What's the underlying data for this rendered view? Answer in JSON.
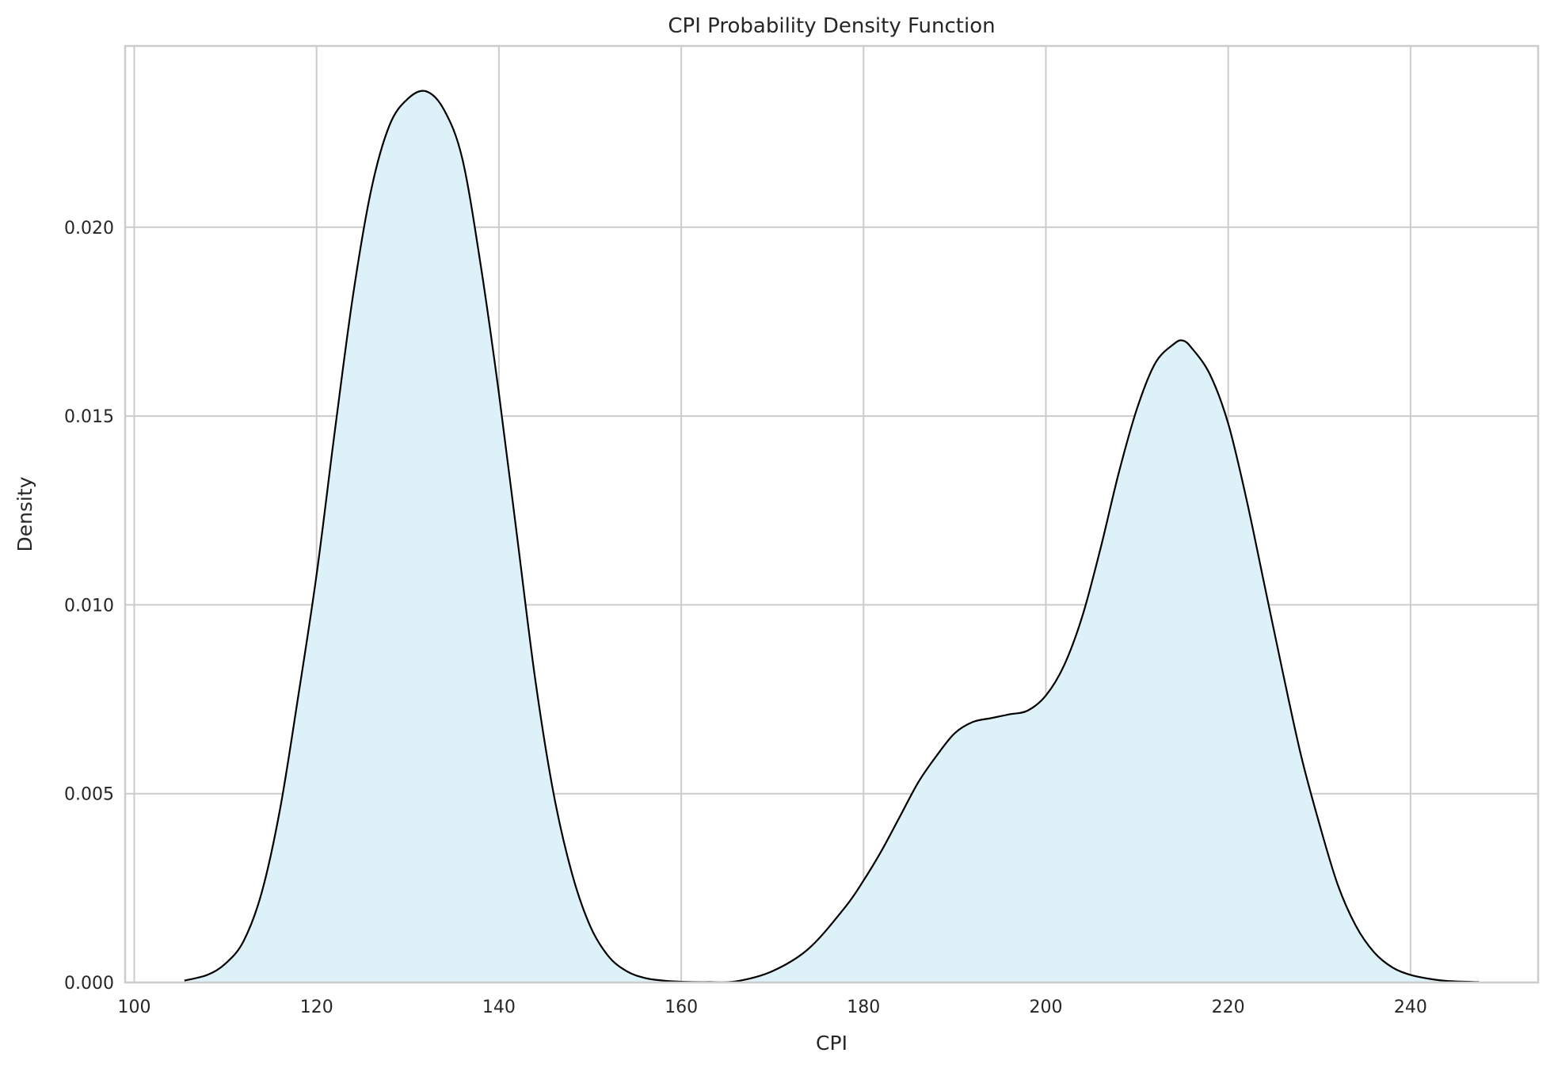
{
  "chart_data": {
    "type": "area",
    "title": "CPI Probability Density Function",
    "xlabel": "CPI",
    "ylabel": "Density",
    "xlim": [
      99,
      254
    ],
    "ylim": [
      0,
      0.0248
    ],
    "x_ticks": [
      100,
      120,
      140,
      160,
      180,
      200,
      220,
      240
    ],
    "x_tick_labels": [
      "100",
      "120",
      "140",
      "160",
      "180",
      "200",
      "220",
      "240"
    ],
    "y_ticks": [
      0,
      0.005,
      0.01,
      0.015,
      0.02
    ],
    "y_tick_labels": [
      "0.000",
      "0.005",
      "0.010",
      "0.015",
      "0.020"
    ],
    "grid": true,
    "legend": "none",
    "colors": {
      "fill": "#ddf1f9",
      "line": "#000000",
      "grid": "#cccccc",
      "frame": "#cccccc"
    },
    "series": [
      {
        "x": [
          105.5,
          108,
          110,
          112,
          114,
          116,
          118,
          120,
          122,
          124,
          126,
          128,
          130,
          132,
          134,
          136,
          138,
          140,
          142,
          144,
          146,
          148,
          150,
          152,
          154,
          156,
          158,
          160,
          163,
          166,
          170,
          174,
          178,
          180,
          182,
          184,
          186,
          188,
          190,
          192,
          194,
          196,
          198,
          200,
          202,
          204,
          206,
          208,
          210,
          212,
          214,
          215,
          216,
          218,
          220,
          222,
          224,
          226,
          228,
          230,
          232,
          234,
          236,
          238,
          240,
          242,
          244,
          247.5
        ],
        "y": [
          5e-05,
          0.0002,
          0.0005,
          0.0011,
          0.0024,
          0.0046,
          0.0076,
          0.0108,
          0.0146,
          0.0182,
          0.021,
          0.0227,
          0.0234,
          0.0236,
          0.0231,
          0.0218,
          0.019,
          0.0156,
          0.0118,
          0.008,
          0.005,
          0.0029,
          0.0015,
          0.0007,
          0.0003,
          0.00012,
          5e-05,
          2e-05,
          1e-05,
          3e-05,
          0.0003,
          0.0009,
          0.002,
          0.0027,
          0.0035,
          0.0044,
          0.0053,
          0.006,
          0.0066,
          0.0069,
          0.007,
          0.0071,
          0.0072,
          0.0076,
          0.0084,
          0.0097,
          0.0115,
          0.0135,
          0.0152,
          0.0164,
          0.0169,
          0.017,
          0.0168,
          0.0161,
          0.0148,
          0.0128,
          0.0105,
          0.0082,
          0.006,
          0.0042,
          0.0026,
          0.0015,
          0.0008,
          0.0004,
          0.0002,
          0.0001,
          4e-05,
          1e-05
        ]
      }
    ]
  }
}
